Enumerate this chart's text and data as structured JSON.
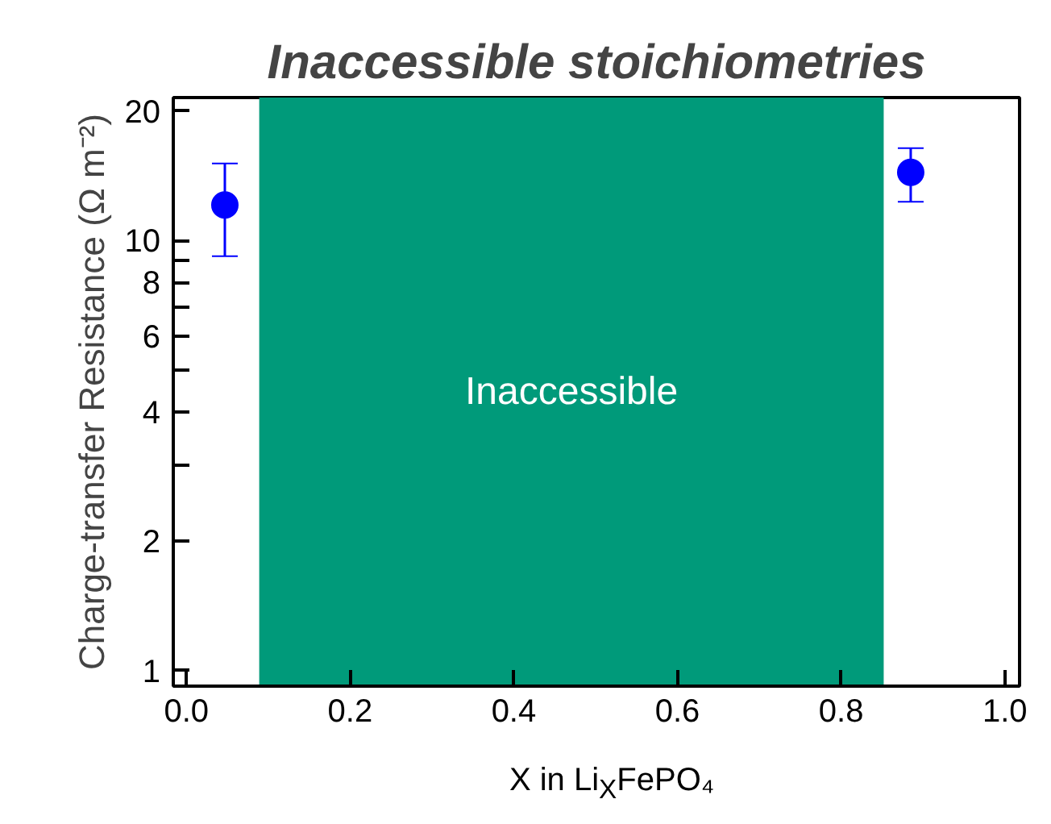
{
  "chart_data": {
    "type": "scatter",
    "title": "Inaccessible stoichiometries",
    "xlabel": "X in Li$_{X}$FePO₄",
    "ylabel": "Charge-transfer Resistance (Ω m⁻²)",
    "x": [
      0.047,
      0.885
    ],
    "series": [
      {
        "color": "#0000ff",
        "values": [
          12.1,
          14.4
        ],
        "errors": [
          [
            9.2,
            15.1
          ],
          [
            12.3,
            16.4
          ]
        ]
      }
    ],
    "marker": "circle",
    "log": "y",
    "xlim": [
      -0.016,
      1.018
    ],
    "xticks": [
      {
        "value": 0,
        "label": "0.0"
      },
      {
        "value": 0.2,
        "label": "0.2"
      },
      {
        "value": 0.4,
        "label": "0.4"
      },
      {
        "value": 0.6,
        "label": "0.6"
      },
      {
        "value": 0.8,
        "label": "0.8"
      },
      {
        "value": 1,
        "label": "1.0"
      }
    ],
    "ylim": [
      0.92,
      21.5
    ],
    "yticks": [
      1,
      2,
      {
        "value": 3,
        "label": null
      },
      4,
      {
        "value": 5,
        "label": null
      },
      6,
      {
        "value": 7,
        "label": null
      },
      8,
      {
        "value": 9,
        "label": null
      },
      10,
      20
    ],
    "bands": [
      {
        "axis": "x",
        "from": 0.089,
        "to": 0.852,
        "label": "Inaccessible",
        "color": "#009a7a"
      }
    ],
    "grid": false
  }
}
